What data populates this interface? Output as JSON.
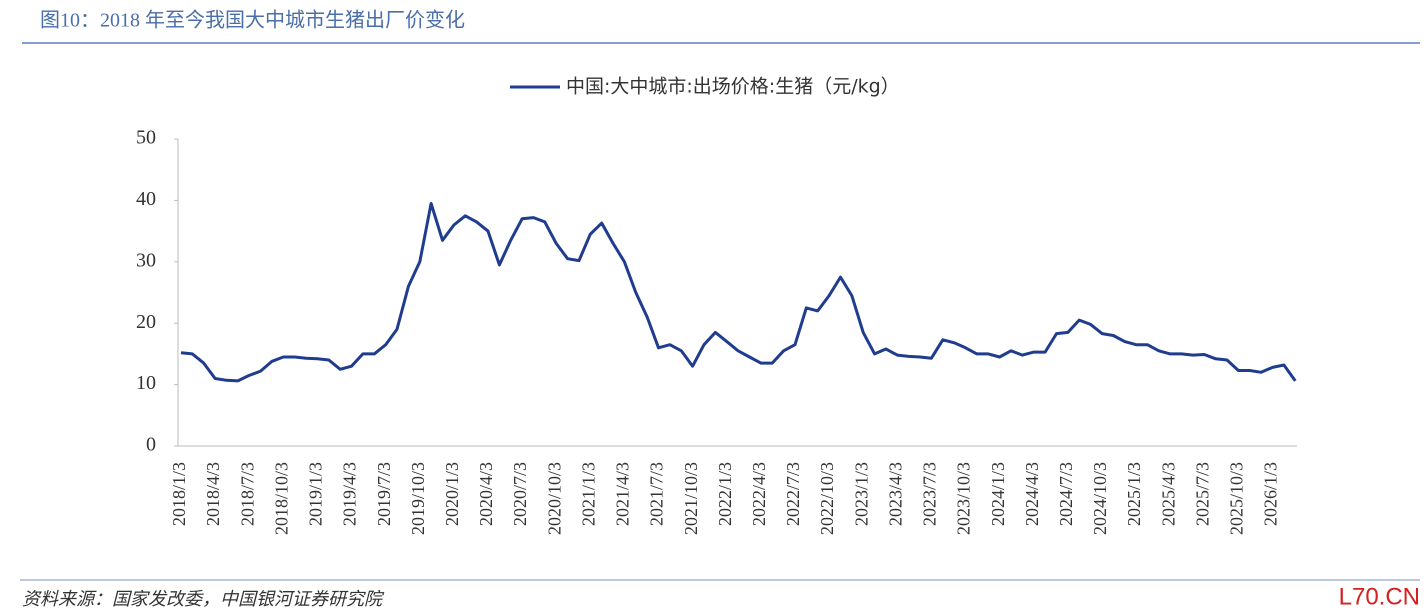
{
  "chart_data": {
    "type": "line",
    "title": "图10：2018 年至今我国大中城市生猪出厂价变化",
    "categories": [
      "2018/1/3",
      null,
      null,
      "2018/4/3",
      null,
      null,
      "2018/7/3",
      null,
      null,
      "2018/10/3",
      null,
      null,
      "2019/1/3",
      null,
      null,
      "2019/4/3",
      null,
      null,
      "2019/7/3",
      null,
      null,
      "2019/10/3",
      null,
      null,
      "2020/1/3",
      null,
      null,
      "2020/4/3",
      null,
      null,
      "2020/7/3",
      null,
      null,
      "2020/10/3",
      null,
      null,
      "2021/1/3",
      null,
      null,
      "2021/4/3",
      null,
      null,
      "2021/7/3",
      null,
      null,
      "2021/10/3",
      null,
      null,
      "2022/1/3",
      null,
      null,
      "2022/4/3",
      null,
      null,
      "2022/7/3",
      null,
      null,
      "2022/10/3",
      null,
      null,
      "2023/1/3",
      null,
      null,
      "2023/4/3",
      null,
      null,
      "2023/7/3",
      null,
      null,
      "2023/10/3",
      null,
      null,
      "2024/1/3",
      null,
      null,
      "2024/4/3",
      null,
      null,
      "2024/7/3",
      null,
      null,
      "2024/10/3",
      null,
      null,
      "2025/1/3",
      null,
      null,
      "2025/4/3",
      null,
      null,
      "2025/7/3",
      null,
      null,
      "2025/10/3",
      null,
      null,
      "2026/1/3",
      null,
      null
    ],
    "series": [
      {
        "name": "中国:大中城市:出场价格:生猪（元/kg）",
        "color": "#1f3c8f",
        "values": [
          15.2,
          15.0,
          13.5,
          11.0,
          10.7,
          10.6,
          11.5,
          12.2,
          13.8,
          14.5,
          14.5,
          14.3,
          14.2,
          14.0,
          12.5,
          13.0,
          15.0,
          15.0,
          16.5,
          19.0,
          26.0,
          30.0,
          39.5,
          33.5,
          36.0,
          37.5,
          36.5,
          35.0,
          29.5,
          33.5,
          37.0,
          37.2,
          36.5,
          33.0,
          30.5,
          30.2,
          34.5,
          36.3,
          33.0,
          30.0,
          25.0,
          21.0,
          16.0,
          16.5,
          15.5,
          13.0,
          16.5,
          18.5,
          17.0,
          15.5,
          14.5,
          13.5,
          13.5,
          15.5,
          16.5,
          22.5,
          22.0,
          24.5,
          27.5,
          24.5,
          18.5,
          15.0,
          15.8,
          14.8,
          14.6,
          14.5,
          14.3,
          17.3,
          16.8,
          16.0,
          15.0,
          15.0,
          14.5,
          15.5,
          14.8,
          15.3,
          15.3,
          18.3,
          18.5,
          20.5,
          19.8,
          18.3,
          18.0,
          17.0,
          16.5,
          16.5,
          15.5,
          15.0,
          15.0,
          14.8,
          14.9,
          14.2,
          14.0,
          12.3,
          12.3,
          12.0,
          12.8,
          13.2,
          10.6
        ]
      }
    ],
    "ylim": [
      0,
      50
    ],
    "yticks": [
      0,
      10,
      20,
      30,
      40,
      50
    ],
    "grid": false,
    "legend": "top"
  },
  "source": "资料来源：国家发改委，中国银河证券研究院",
  "watermark": "L70.CN"
}
